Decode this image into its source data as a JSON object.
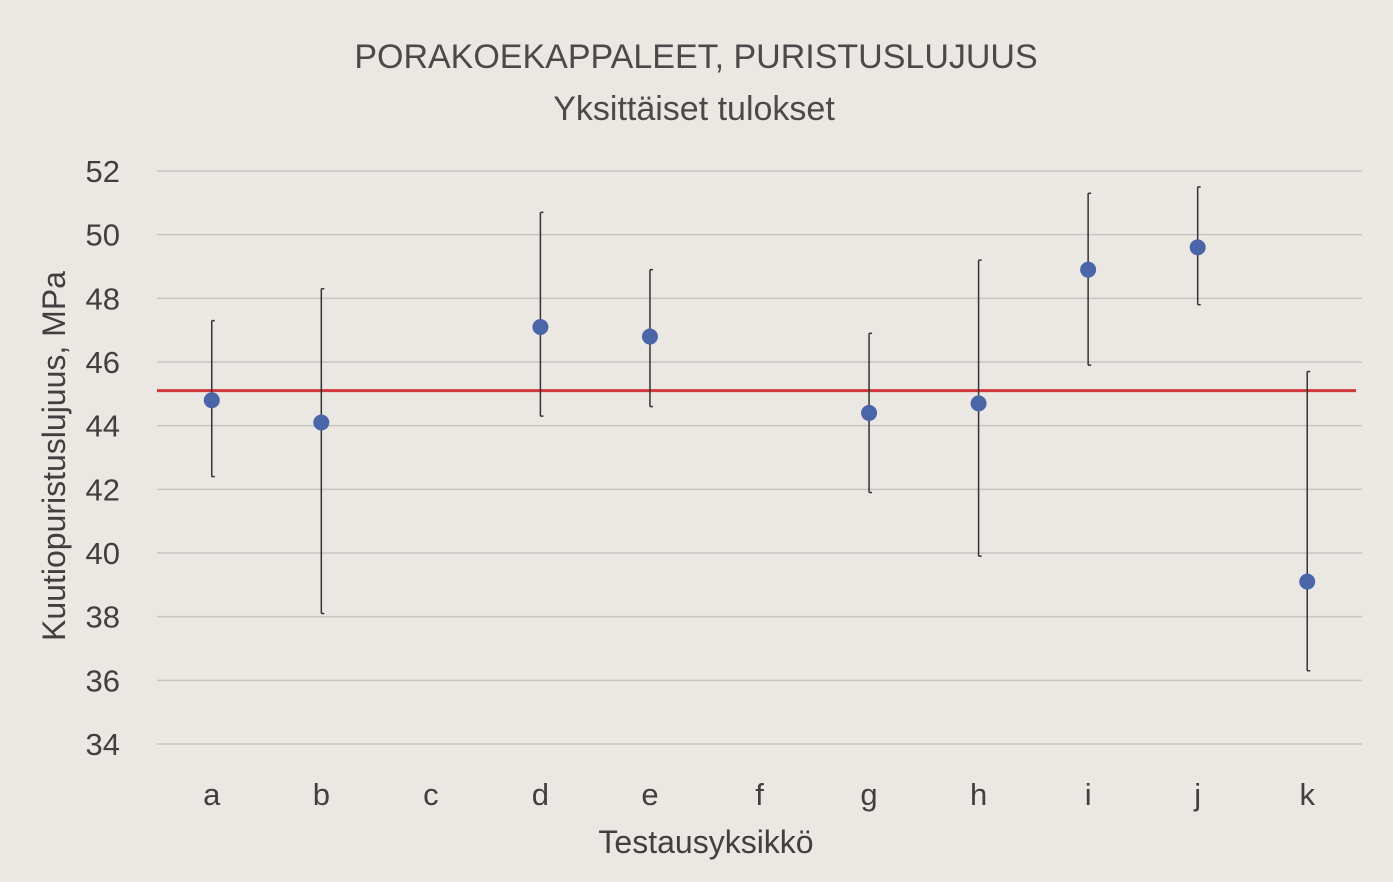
{
  "chart_data": {
    "type": "scatter",
    "title": "PORAKOEKAPPALEET, PURISTUSLUJUUS",
    "subtitle": "Yksittäiset tulokset",
    "xlabel": "Testausyksikkö",
    "ylabel": "Kuutiopuristuslujuus, MPa",
    "ylim": [
      34,
      52
    ],
    "yticks": [
      34,
      36,
      38,
      40,
      42,
      44,
      46,
      48,
      50,
      52
    ],
    "grid": true,
    "categories": [
      "a",
      "b",
      "c",
      "d",
      "e",
      "f",
      "g",
      "h",
      "i",
      "j",
      "k"
    ],
    "series": [
      {
        "values": [
          44.8,
          44.1,
          null,
          47.1,
          46.8,
          null,
          44.4,
          44.7,
          48.9,
          49.6,
          39.1
        ],
        "error_high": [
          47.3,
          48.3,
          null,
          50.7,
          48.9,
          null,
          46.9,
          49.2,
          51.3,
          51.5,
          45.7
        ],
        "error_low": [
          42.4,
          38.1,
          null,
          44.3,
          44.6,
          null,
          41.9,
          39.9,
          45.9,
          47.8,
          36.3
        ],
        "marker_color": "#4a65a8",
        "error_color": "#333333"
      }
    ],
    "reference_line": {
      "value": 45.1,
      "color": "#d0383a"
    },
    "colors": {
      "background": "#ebe8e4",
      "grid": "#c8c5c1"
    }
  }
}
